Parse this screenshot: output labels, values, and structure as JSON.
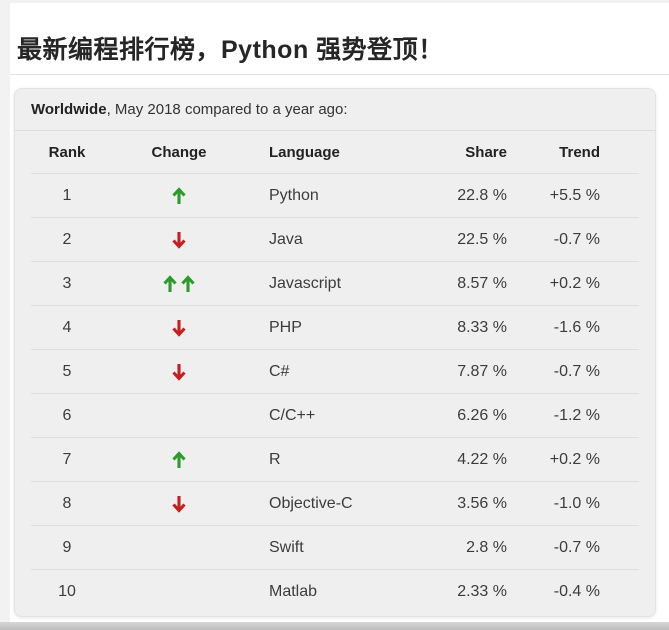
{
  "article": {
    "title": "最新编程排行榜，Python 强势登顶！"
  },
  "table": {
    "caption_bold": "Worldwide",
    "caption_rest": ", May 2018 compared to a year ago:",
    "columns": [
      "Rank",
      "Change",
      "Language",
      "Share",
      "Trend"
    ],
    "rows": [
      {
        "rank": "1",
        "change": "up",
        "language": "Python",
        "share": "22.8 %",
        "trend": "+5.5 %"
      },
      {
        "rank": "2",
        "change": "down",
        "language": "Java",
        "share": "22.5 %",
        "trend": "-0.7 %"
      },
      {
        "rank": "3",
        "change": "up-up",
        "language": "Javascript",
        "share": "8.57 %",
        "trend": "+0.2 %"
      },
      {
        "rank": "4",
        "change": "down",
        "language": "PHP",
        "share": "8.33 %",
        "trend": "-1.6 %"
      },
      {
        "rank": "5",
        "change": "down",
        "language": "C#",
        "share": "7.87 %",
        "trend": "-0.7 %"
      },
      {
        "rank": "6",
        "change": "none",
        "language": "C/C++",
        "share": "6.26 %",
        "trend": "-1.2 %"
      },
      {
        "rank": "7",
        "change": "up",
        "language": "R",
        "share": "4.22 %",
        "trend": "+0.2 %"
      },
      {
        "rank": "8",
        "change": "down",
        "language": "Objective-C",
        "share": "3.56 %",
        "trend": "-1.0 %"
      },
      {
        "rank": "9",
        "change": "none",
        "language": "Swift",
        "share": "2.8 %",
        "trend": "-0.7 %"
      },
      {
        "rank": "10",
        "change": "none",
        "language": "Matlab",
        "share": "2.33 %",
        "trend": "-0.4 %"
      }
    ]
  },
  "colors": {
    "up_arrow": "#2a9c2a",
    "down_arrow": "#c32020",
    "card_bg": "#efefef",
    "text": "#3c3c3c"
  }
}
